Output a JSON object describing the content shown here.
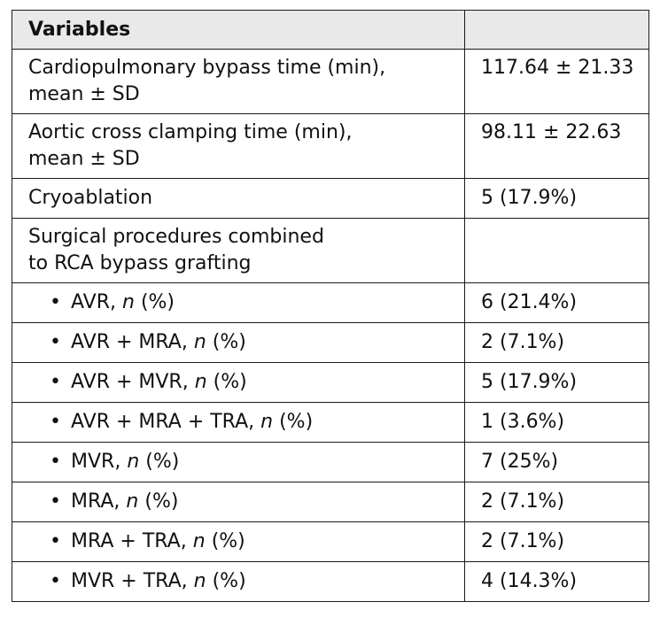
{
  "header": {
    "col1": "Variables",
    "col2": ""
  },
  "rows": [
    {
      "label_line1": "Cardiopulmonary bypass time (min),",
      "label_line2": "mean ± SD",
      "value": "117.64 ± 21.33"
    },
    {
      "label_line1": "Aortic cross clamping time (min),",
      "label_line2": "mean ± SD",
      "value": "98.11 ± 22.63"
    },
    {
      "label": "Cryoablation",
      "value": "5 (17.9%)"
    },
    {
      "label_line1": "Surgical procedures combined",
      "label_line2": "to RCA bypass grafting",
      "value": ""
    }
  ],
  "sub_rows": [
    {
      "bullet": "•",
      "label": "AVR,",
      "n": "n",
      "pct": "(%)",
      "value": "6 (21.4%)"
    },
    {
      "bullet": "•",
      "label": "AVR + MRA,",
      "n": "n",
      "pct": "(%)",
      "value": "2 (7.1%)"
    },
    {
      "bullet": "•",
      "label": "AVR + MVR,",
      "n": "n",
      "pct": "(%)",
      "value": "5 (17.9%)"
    },
    {
      "bullet": "•",
      "label": "AVR + MRA + TRA,",
      "n": "n",
      "pct": "(%)",
      "value": "1 (3.6%)"
    },
    {
      "bullet": "•",
      "label": "MVR,",
      "n": "n",
      "pct": "(%)",
      "value": "7 (25%)"
    },
    {
      "bullet": "•",
      "label": "MRA,",
      "n": "n",
      "pct": "(%)",
      "value": "2 (7.1%)"
    },
    {
      "bullet": "•",
      "label": "MRA + TRA,",
      "n": "n",
      "pct": "(%)",
      "value": "2 (7.1%)"
    },
    {
      "bullet": "•",
      "label": "MVR + TRA,",
      "n": "n",
      "pct": "(%)",
      "value": "4 (14.3%)"
    }
  ]
}
